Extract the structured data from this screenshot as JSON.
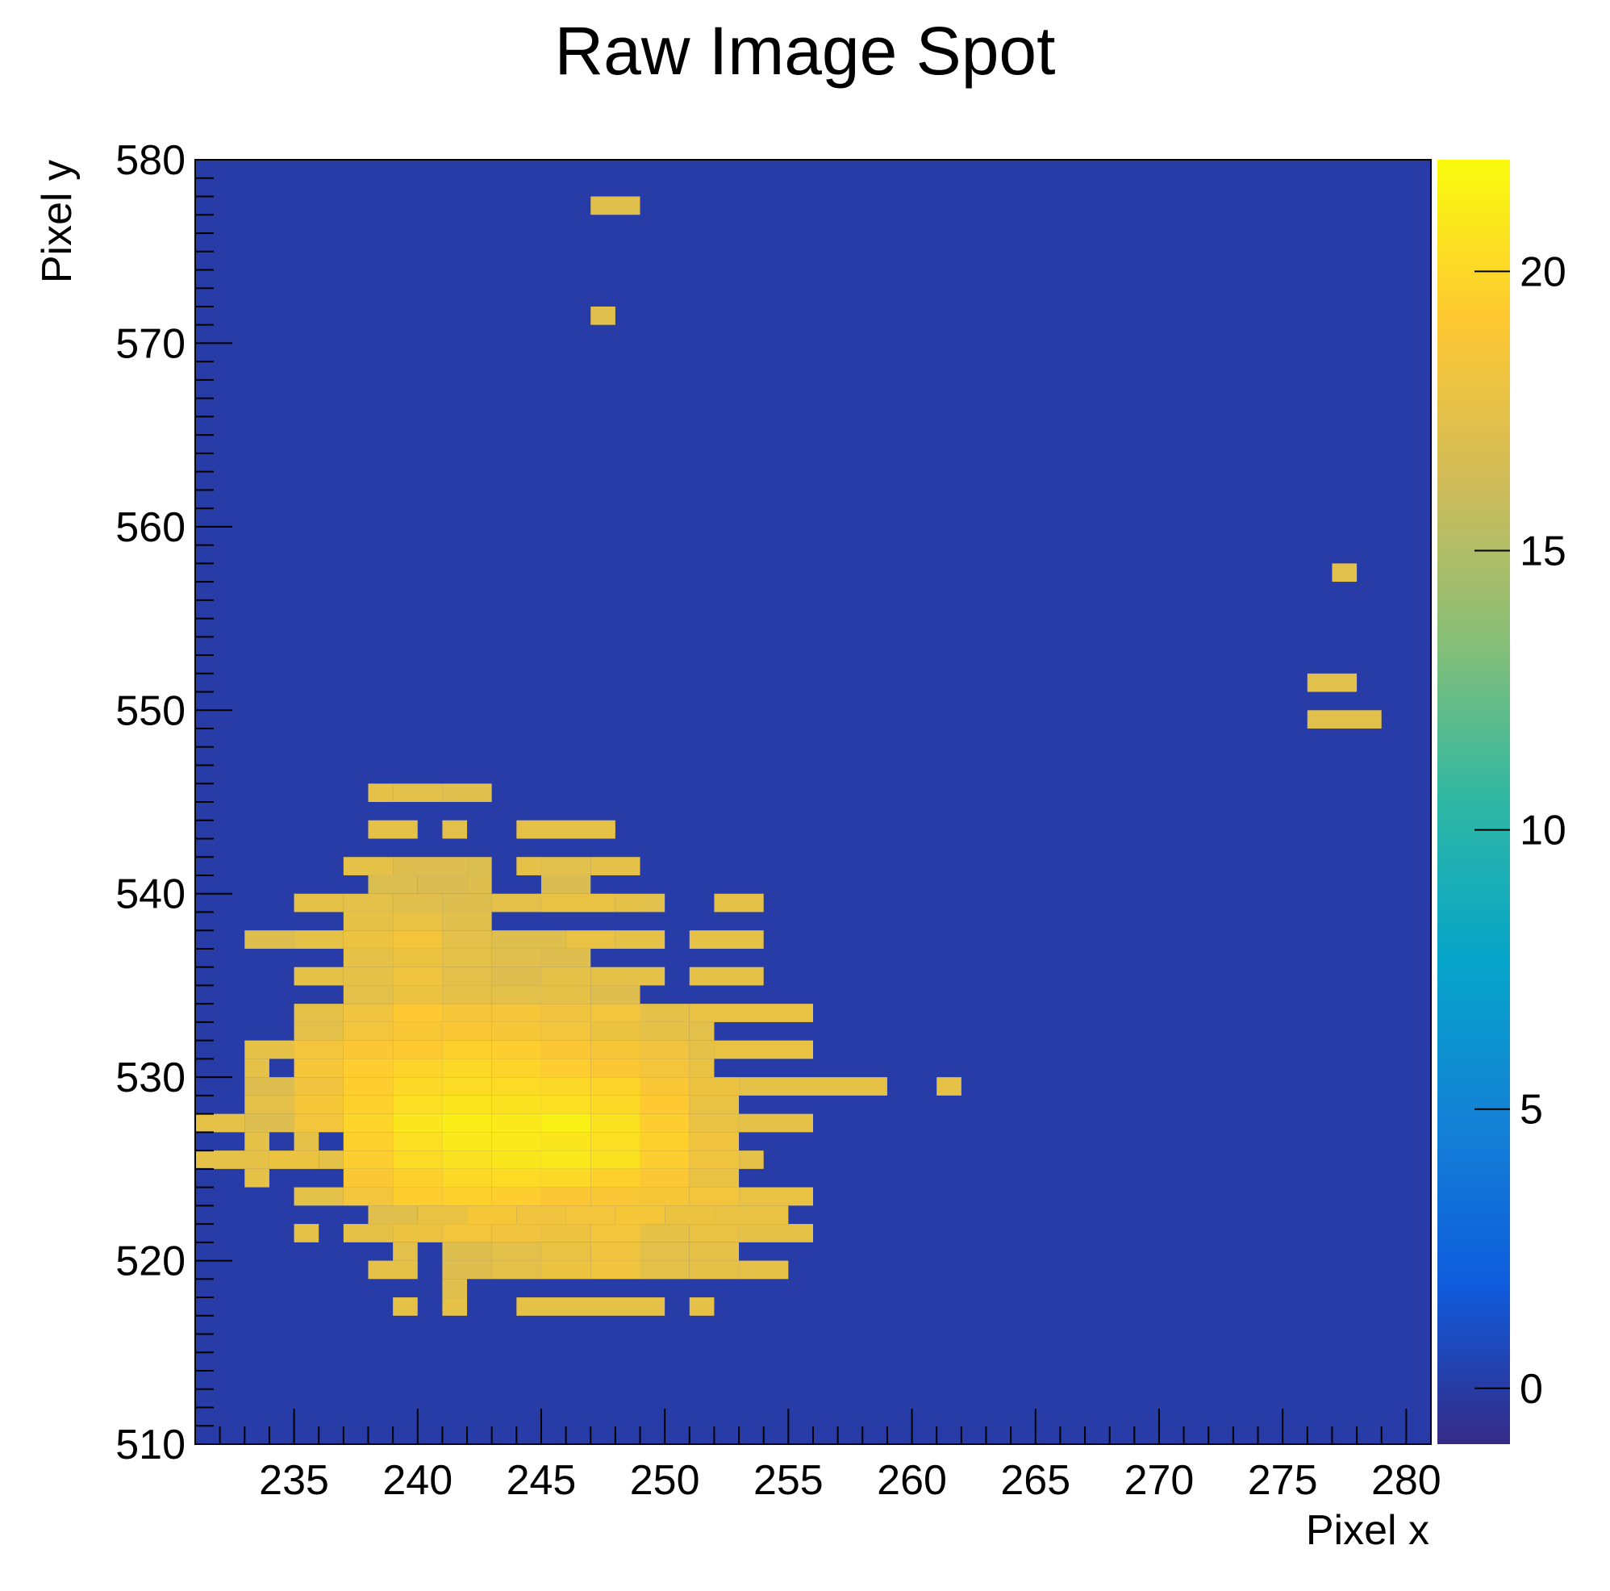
{
  "chart_data": {
    "type": "heatmap",
    "title": "Raw Image Spot",
    "xlabel": "Pixel x",
    "ylabel": "Pixel y",
    "xlim": [
      231,
      280
    ],
    "ylim": [
      510,
      580
    ],
    "x_ticks": [
      235,
      240,
      245,
      250,
      255,
      260,
      265,
      270,
      275,
      280
    ],
    "y_ticks": [
      510,
      520,
      530,
      540,
      550,
      560,
      570,
      580
    ],
    "background_value": 0,
    "colorbar": {
      "range": [
        -1,
        22
      ],
      "ticks": [
        0,
        5,
        10,
        15,
        20
      ],
      "palette": "kBird",
      "colors": [
        "#352a87",
        "#0f5cdd",
        "#1481d6",
        "#06a4ca",
        "#2eb7a4",
        "#87bf77",
        "#d1bb59",
        "#fec832",
        "#f9fb0e"
      ],
      "background_color": "#273ca6"
    },
    "rows": [
      {
        "y": 577,
        "cells": [
          [
            247,
            248,
            17.2
          ]
        ]
      },
      {
        "y": 571,
        "cells": [
          [
            247,
            247,
            17.2
          ]
        ]
      },
      {
        "y": 557,
        "cells": [
          [
            277,
            277,
            17.3
          ]
        ]
      },
      {
        "y": 551,
        "cells": [
          [
            276,
            277,
            17.3
          ]
        ]
      },
      {
        "y": 549,
        "cells": [
          [
            276,
            278,
            17.3
          ]
        ]
      },
      {
        "y": 545,
        "cells": [
          [
            238,
            238,
            17.6
          ],
          [
            239,
            240,
            17.4
          ],
          [
            241,
            242,
            17.2
          ]
        ]
      },
      {
        "y": 543,
        "cells": [
          [
            238,
            239,
            17.5
          ],
          [
            241,
            241,
            17.4
          ],
          [
            244,
            247,
            17.6
          ]
        ]
      },
      {
        "y": 541,
        "cells": [
          [
            237,
            238,
            17.6
          ],
          [
            239,
            241,
            17.0
          ],
          [
            242,
            242,
            16.9
          ],
          [
            244,
            244,
            17.6
          ],
          [
            245,
            246,
            17.3
          ],
          [
            247,
            248,
            17.6
          ]
        ]
      },
      {
        "y": 540,
        "cells": [
          [
            238,
            239,
            16.9
          ],
          [
            240,
            241,
            16.8
          ],
          [
            242,
            242,
            17.0
          ],
          [
            245,
            246,
            16.8
          ]
        ]
      },
      {
        "y": 539,
        "cells": [
          [
            235,
            236,
            17.6
          ],
          [
            237,
            238,
            17.4
          ],
          [
            239,
            240,
            17.2
          ],
          [
            241,
            242,
            17.0
          ],
          [
            243,
            244,
            17.4
          ],
          [
            245,
            247,
            17.8
          ],
          [
            248,
            248,
            17.5
          ],
          [
            249,
            249,
            17.3
          ],
          [
            252,
            253,
            17.6
          ]
        ]
      },
      {
        "y": 538,
        "cells": [
          [
            237,
            238,
            17.6
          ],
          [
            239,
            240,
            17.8
          ],
          [
            241,
            242,
            17.2
          ]
        ]
      },
      {
        "y": 537,
        "cells": [
          [
            233,
            234,
            17.0
          ],
          [
            235,
            236,
            17.6
          ],
          [
            237,
            238,
            18.0
          ],
          [
            239,
            240,
            18.5
          ],
          [
            241,
            242,
            17.4
          ],
          [
            243,
            245,
            17.1
          ],
          [
            246,
            247,
            17.8
          ],
          [
            248,
            249,
            17.6
          ],
          [
            251,
            253,
            17.6
          ]
        ]
      },
      {
        "y": 536,
        "cells": [
          [
            237,
            238,
            17.6
          ],
          [
            239,
            240,
            18.0
          ],
          [
            241,
            242,
            17.5
          ],
          [
            243,
            244,
            17.2
          ],
          [
            245,
            246,
            17.0
          ]
        ]
      },
      {
        "y": 535,
        "cells": [
          [
            235,
            236,
            17.6
          ],
          [
            237,
            238,
            17.6
          ],
          [
            239,
            240,
            18.2
          ],
          [
            241,
            242,
            17.4
          ],
          [
            243,
            244,
            17.0
          ],
          [
            245,
            246,
            17.5
          ],
          [
            247,
            249,
            17.6
          ],
          [
            251,
            253,
            17.6
          ]
        ]
      },
      {
        "y": 534,
        "cells": [
          [
            237,
            238,
            17.4
          ],
          [
            239,
            240,
            18.0
          ],
          [
            241,
            242,
            17.6
          ],
          [
            243,
            244,
            17.4
          ],
          [
            245,
            246,
            17.6
          ],
          [
            247,
            248,
            17.0
          ]
        ]
      },
      {
        "y": 533,
        "cells": [
          [
            235,
            236,
            17.6
          ],
          [
            237,
            238,
            18.2
          ],
          [
            239,
            240,
            19.2
          ],
          [
            241,
            242,
            18.6
          ],
          [
            243,
            244,
            18.6
          ],
          [
            245,
            246,
            18.2
          ],
          [
            247,
            248,
            18.4
          ],
          [
            249,
            250,
            17.6
          ],
          [
            251,
            255,
            17.8
          ]
        ]
      },
      {
        "y": 532,
        "cells": [
          [
            235,
            236,
            17.4
          ],
          [
            237,
            238,
            18.4
          ],
          [
            239,
            240,
            18.8
          ],
          [
            241,
            242,
            19.0
          ],
          [
            243,
            244,
            18.6
          ],
          [
            245,
            246,
            18.4
          ],
          [
            247,
            248,
            18.0
          ],
          [
            249,
            250,
            17.6
          ],
          [
            251,
            251,
            17.4
          ]
        ]
      },
      {
        "y": 531,
        "cells": [
          [
            233,
            234,
            17.6
          ],
          [
            235,
            236,
            18.4
          ],
          [
            237,
            238,
            19.0
          ],
          [
            239,
            240,
            19.2
          ],
          [
            241,
            242,
            19.6
          ],
          [
            243,
            244,
            19.4
          ],
          [
            245,
            246,
            19.0
          ],
          [
            247,
            248,
            18.6
          ],
          [
            249,
            250,
            18.2
          ],
          [
            251,
            251,
            17.6
          ],
          [
            252,
            255,
            17.8
          ]
        ]
      },
      {
        "y": 530,
        "cells": [
          [
            233,
            233,
            17.6
          ],
          [
            235,
            236,
            18.6
          ],
          [
            237,
            238,
            19.4
          ],
          [
            239,
            240,
            19.8
          ],
          [
            241,
            242,
            20.0
          ],
          [
            243,
            244,
            19.8
          ],
          [
            245,
            246,
            19.4
          ],
          [
            247,
            248,
            19.0
          ],
          [
            249,
            250,
            18.4
          ],
          [
            251,
            251,
            17.8
          ]
        ]
      },
      {
        "y": 529,
        "cells": [
          [
            233,
            234,
            17.0
          ],
          [
            235,
            236,
            18.2
          ],
          [
            237,
            238,
            19.4
          ],
          [
            239,
            240,
            20.0
          ],
          [
            241,
            242,
            20.2
          ],
          [
            243,
            244,
            20.2
          ],
          [
            245,
            246,
            20.0
          ],
          [
            247,
            248,
            19.8
          ],
          [
            249,
            250,
            18.8
          ],
          [
            251,
            252,
            18.0
          ],
          [
            253,
            258,
            17.6
          ],
          [
            261,
            261,
            17.6
          ]
        ]
      },
      {
        "y": 528,
        "cells": [
          [
            233,
            234,
            17.4
          ],
          [
            235,
            236,
            18.6
          ],
          [
            237,
            238,
            19.6
          ],
          [
            239,
            240,
            20.4
          ],
          [
            241,
            242,
            20.8
          ],
          [
            243,
            244,
            20.6
          ],
          [
            245,
            246,
            20.4
          ],
          [
            247,
            248,
            20.0
          ],
          [
            249,
            250,
            19.2
          ],
          [
            251,
            252,
            17.8
          ]
        ]
      },
      {
        "y": 527,
        "cells": [
          [
            231,
            232,
            17.6
          ],
          [
            233,
            234,
            17.0
          ],
          [
            235,
            236,
            18.4
          ],
          [
            237,
            238,
            19.8
          ],
          [
            239,
            240,
            20.8
          ],
          [
            241,
            242,
            21.2
          ],
          [
            243,
            244,
            21.0
          ],
          [
            245,
            246,
            21.4
          ],
          [
            247,
            248,
            20.6
          ],
          [
            249,
            250,
            19.4
          ],
          [
            251,
            252,
            17.8
          ],
          [
            253,
            255,
            17.6
          ]
        ]
      },
      {
        "y": 526,
        "cells": [
          [
            233,
            233,
            17.6
          ],
          [
            235,
            235,
            17.6
          ],
          [
            237,
            238,
            19.6
          ],
          [
            239,
            240,
            20.4
          ],
          [
            241,
            242,
            21.0
          ],
          [
            243,
            244,
            21.0
          ],
          [
            245,
            246,
            20.8
          ],
          [
            247,
            248,
            20.4
          ],
          [
            249,
            250,
            19.6
          ],
          [
            251,
            252,
            18.2
          ]
        ]
      },
      {
        "y": 525,
        "cells": [
          [
            231,
            233,
            17.6
          ],
          [
            234,
            235,
            18.0
          ],
          [
            236,
            236,
            17.6
          ],
          [
            237,
            238,
            19.4
          ],
          [
            239,
            240,
            20.2
          ],
          [
            241,
            242,
            20.6
          ],
          [
            243,
            244,
            20.8
          ],
          [
            245,
            246,
            21.0
          ],
          [
            247,
            248,
            20.6
          ],
          [
            249,
            250,
            19.4
          ],
          [
            251,
            252,
            18.2
          ],
          [
            253,
            253,
            17.6
          ]
        ]
      },
      {
        "y": 524,
        "cells": [
          [
            233,
            233,
            17.6
          ],
          [
            237,
            238,
            19.0
          ],
          [
            239,
            240,
            19.6
          ],
          [
            241,
            242,
            20.0
          ],
          [
            243,
            244,
            20.2
          ],
          [
            245,
            246,
            20.0
          ],
          [
            247,
            248,
            19.6
          ],
          [
            249,
            250,
            19.0
          ],
          [
            251,
            252,
            17.8
          ]
        ]
      },
      {
        "y": 523,
        "cells": [
          [
            235,
            236,
            17.4
          ],
          [
            237,
            238,
            18.4
          ],
          [
            239,
            240,
            19.4
          ],
          [
            241,
            242,
            19.6
          ],
          [
            243,
            244,
            19.4
          ],
          [
            245,
            246,
            19.0
          ],
          [
            247,
            248,
            18.8
          ],
          [
            249,
            250,
            18.6
          ],
          [
            251,
            252,
            18.4
          ],
          [
            253,
            255,
            17.8
          ]
        ]
      },
      {
        "y": 522,
        "cells": [
          [
            238,
            239,
            17.2
          ],
          [
            240,
            241,
            17.8
          ],
          [
            242,
            243,
            18.6
          ],
          [
            244,
            245,
            18.2
          ],
          [
            246,
            247,
            18.4
          ],
          [
            248,
            249,
            18.6
          ],
          [
            250,
            251,
            18.0
          ],
          [
            252,
            254,
            17.8
          ]
        ]
      },
      {
        "y": 521,
        "cells": [
          [
            235,
            235,
            17.6
          ],
          [
            237,
            238,
            17.6
          ],
          [
            239,
            240,
            18.0
          ],
          [
            241,
            242,
            18.4
          ],
          [
            243,
            244,
            18.2
          ],
          [
            245,
            246,
            18.0
          ],
          [
            247,
            248,
            18.4
          ],
          [
            249,
            250,
            17.6
          ],
          [
            251,
            252,
            17.8
          ],
          [
            253,
            255,
            17.6
          ]
        ]
      },
      {
        "y": 520,
        "cells": [
          [
            239,
            239,
            17.4
          ],
          [
            241,
            242,
            17.0
          ],
          [
            243,
            244,
            17.4
          ],
          [
            245,
            246,
            17.8
          ],
          [
            247,
            248,
            18.2
          ],
          [
            249,
            250,
            17.4
          ],
          [
            251,
            252,
            17.6
          ]
        ]
      },
      {
        "y": 519,
        "cells": [
          [
            238,
            239,
            17.6
          ],
          [
            241,
            242,
            17.0
          ],
          [
            243,
            244,
            17.4
          ],
          [
            245,
            246,
            18.0
          ],
          [
            247,
            248,
            18.2
          ],
          [
            249,
            250,
            17.4
          ],
          [
            251,
            252,
            17.6
          ],
          [
            253,
            254,
            17.6
          ]
        ]
      },
      {
        "y": 518,
        "cells": [
          [
            241,
            241,
            17.2
          ]
        ]
      },
      {
        "y": 517,
        "cells": [
          [
            239,
            239,
            17.6
          ],
          [
            241,
            241,
            17.6
          ],
          [
            244,
            249,
            17.6
          ],
          [
            251,
            251,
            17.6
          ]
        ]
      }
    ]
  }
}
